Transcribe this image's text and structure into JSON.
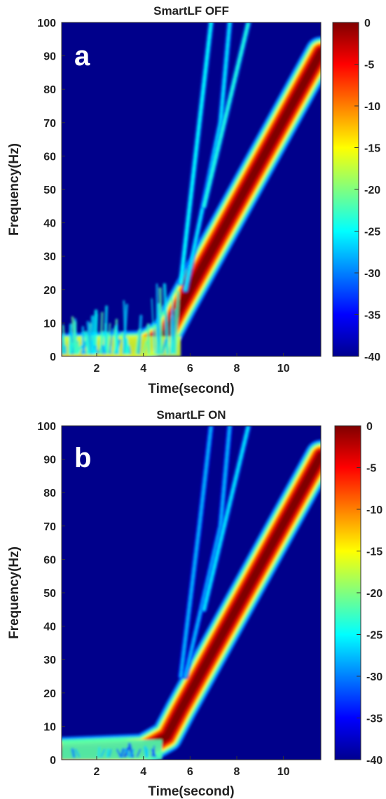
{
  "chart_data": [
    {
      "type": "heatmap",
      "title": "SmartLF OFF",
      "panel_label": "a",
      "xlabel": "Time(second)",
      "ylabel": "Frequency(Hz)",
      "xlim": [
        0.5,
        11.6
      ],
      "ylim": [
        0,
        100
      ],
      "x_ticks": [
        "2",
        "4",
        "6",
        "8",
        "10"
      ],
      "y_ticks": [
        "0",
        "10",
        "20",
        "30",
        "40",
        "50",
        "60",
        "70",
        "80",
        "90",
        "100"
      ],
      "colorbar": {
        "range": [
          -40,
          0
        ],
        "ticks": [
          "0",
          "-5",
          "-10",
          "-15",
          "-20",
          "-25",
          "-30",
          "-35",
          "-40"
        ],
        "colormap": "jet"
      },
      "series": [
        {
          "kind": "fundamental_ridge",
          "level_db": 0,
          "points": [
            [
              0.5,
              2
            ],
            [
              4.0,
              3
            ],
            [
              5.0,
              7
            ],
            [
              5.6,
              15
            ],
            [
              11.6,
              91
            ]
          ]
        },
        {
          "kind": "harmonic",
          "level_db": -25,
          "points": [
            [
              5.6,
              22
            ],
            [
              6.4,
              70
            ],
            [
              6.9,
              100
            ]
          ]
        },
        {
          "kind": "harmonic",
          "level_db": -26,
          "points": [
            [
              5.8,
              20
            ],
            [
              7.3,
              70
            ],
            [
              7.7,
              100
            ]
          ]
        },
        {
          "kind": "harmonic",
          "level_db": -24,
          "points": [
            [
              6.6,
              45
            ],
            [
              8.5,
              100
            ]
          ]
        },
        {
          "kind": "low_freq_noise",
          "level_db": -25,
          "time_range": [
            0.5,
            5.6
          ],
          "freq_range": [
            0,
            25
          ]
        }
      ]
    },
    {
      "type": "heatmap",
      "title": "SmartLF ON",
      "panel_label": "b",
      "xlabel": "Time(second)",
      "ylabel": "Frequency(Hz)",
      "xlim": [
        0.5,
        11.6
      ],
      "ylim": [
        0,
        100
      ],
      "x_ticks": [
        "2",
        "4",
        "6",
        "8",
        "10"
      ],
      "y_ticks": [
        "0",
        "10",
        "20",
        "30",
        "40",
        "50",
        "60",
        "70",
        "80",
        "90",
        "100"
      ],
      "colorbar": {
        "range": [
          -40,
          0
        ],
        "ticks": [
          "0",
          "-5",
          "-10",
          "-15",
          "-20",
          "-25",
          "-30",
          "-35",
          "-40"
        ],
        "colormap": "jet"
      },
      "series": [
        {
          "kind": "fundamental_ridge",
          "level_db": 0,
          "points": [
            [
              0.5,
              2
            ],
            [
              4.0,
              3
            ],
            [
              5.0,
              7
            ],
            [
              5.6,
              15
            ],
            [
              11.6,
              91
            ]
          ]
        },
        {
          "kind": "harmonic",
          "level_db": -28,
          "points": [
            [
              5.6,
              25
            ],
            [
              6.4,
              70
            ],
            [
              6.9,
              100
            ]
          ]
        },
        {
          "kind": "harmonic",
          "level_db": -28,
          "points": [
            [
              5.8,
              25
            ],
            [
              7.3,
              70
            ],
            [
              7.7,
              100
            ]
          ]
        },
        {
          "kind": "harmonic",
          "level_db": -26,
          "points": [
            [
              6.6,
              45
            ],
            [
              8.5,
              100
            ]
          ]
        },
        {
          "kind": "low_freq_noise",
          "level_db": -30,
          "time_range": [
            0.5,
            4.8
          ],
          "freq_range": [
            0,
            6
          ]
        }
      ]
    }
  ]
}
